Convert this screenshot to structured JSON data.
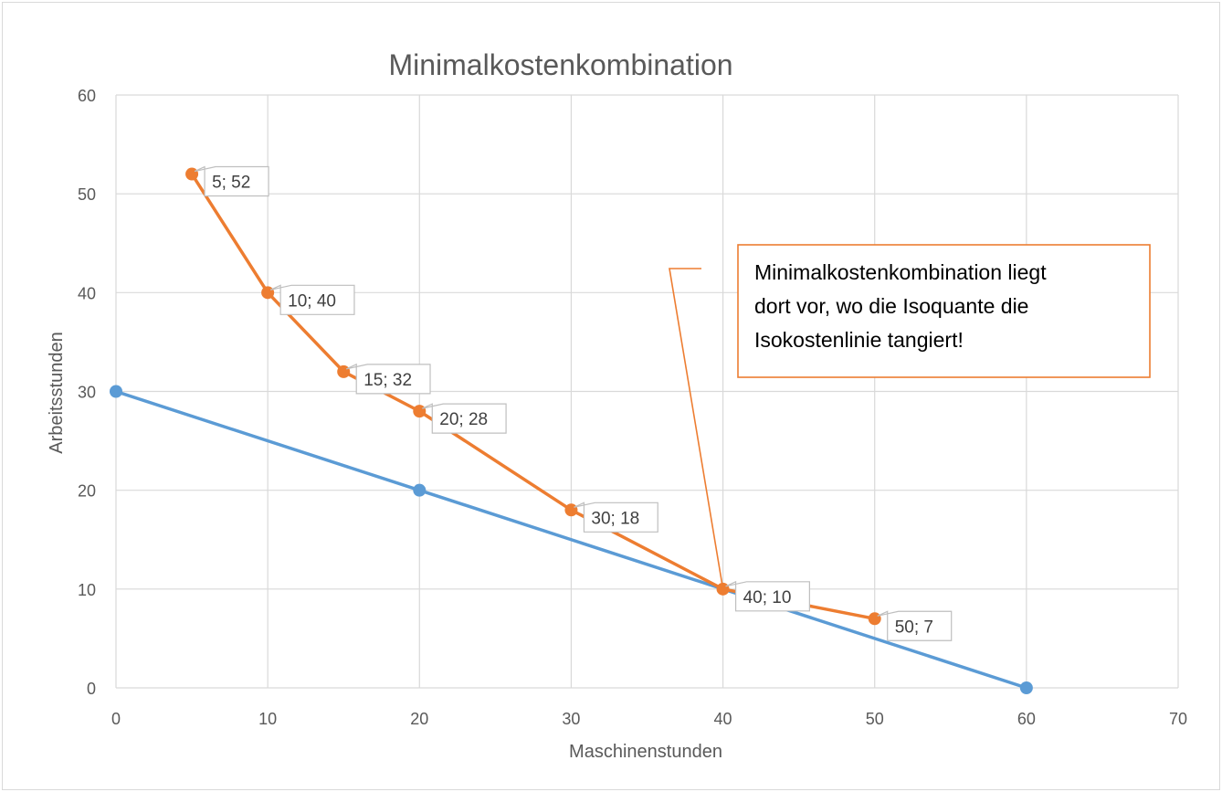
{
  "chart_data": {
    "type": "line",
    "title": "Minimalkostenkombination",
    "xlabel": "Maschinenstunden",
    "ylabel": "Arbeitsstunden",
    "xlim": [
      0,
      70
    ],
    "ylim": [
      0,
      60
    ],
    "xticks": [
      "0",
      "10",
      "20",
      "30",
      "40",
      "50",
      "60",
      "70"
    ],
    "yticks": [
      "0",
      "10",
      "20",
      "30",
      "40",
      "50",
      "60"
    ],
    "grid": true,
    "legend": "none",
    "series": [
      {
        "color": "#5B9BD5",
        "points": [
          [
            0,
            30
          ],
          [
            20,
            20
          ],
          [
            60,
            0
          ]
        ]
      },
      {
        "color": "#ED7D31",
        "points": [
          [
            5,
            52
          ],
          [
            10,
            40
          ],
          [
            15,
            32
          ],
          [
            20,
            28
          ],
          [
            30,
            18
          ],
          [
            40,
            10
          ],
          [
            50,
            7
          ]
        ],
        "labels": [
          "5; 52",
          "10; 40",
          "15; 32",
          "20; 28",
          "30; 18",
          "40; 10",
          "50; 7"
        ]
      }
    ],
    "annotation": {
      "lines": [
        "Minimalkostenkombination liegt",
        "dort vor, wo die Isoquante die",
        "Isokostenlinie tangiert!"
      ],
      "target": [
        40,
        10
      ],
      "border_color": "#ED7D31"
    }
  }
}
